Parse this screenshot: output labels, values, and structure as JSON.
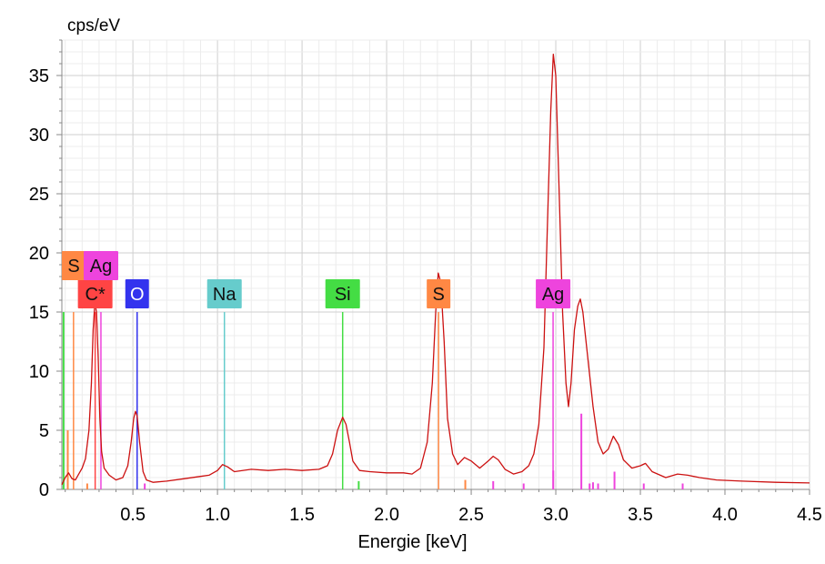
{
  "chart_data": {
    "type": "line",
    "ylabel": "cps/eV",
    "xlabel": "Energie [keV]",
    "xlim": [
      0.08,
      4.5
    ],
    "ylim": [
      0,
      38
    ],
    "x_ticks": [
      "0.5",
      "1.0",
      "1.5",
      "2.0",
      "2.5",
      "3.0",
      "3.5",
      "4.0",
      "4.5"
    ],
    "y_ticks": [
      "0",
      "5",
      "10",
      "15",
      "20",
      "25",
      "30",
      "35"
    ],
    "grid": true,
    "legend": "none",
    "colors": {
      "spectrum": "#cc1111"
    },
    "series": [
      {
        "values": [
          [
            0.08,
            0.4
          ],
          [
            0.1,
            1.0
          ],
          [
            0.12,
            1.4
          ],
          [
            0.14,
            0.9
          ],
          [
            0.16,
            0.8
          ],
          [
            0.18,
            1.3
          ],
          [
            0.2,
            1.8
          ],
          [
            0.22,
            2.6
          ],
          [
            0.24,
            5.0
          ],
          [
            0.255,
            9.0
          ],
          [
            0.265,
            13.5
          ],
          [
            0.275,
            15.8
          ],
          [
            0.285,
            15.0
          ],
          [
            0.295,
            11.0
          ],
          [
            0.305,
            6.0
          ],
          [
            0.315,
            3.2
          ],
          [
            0.33,
            1.8
          ],
          [
            0.36,
            1.2
          ],
          [
            0.4,
            0.8
          ],
          [
            0.44,
            1.0
          ],
          [
            0.47,
            2.0
          ],
          [
            0.49,
            4.0
          ],
          [
            0.505,
            6.0
          ],
          [
            0.515,
            6.6
          ],
          [
            0.525,
            6.2
          ],
          [
            0.54,
            4.0
          ],
          [
            0.56,
            1.5
          ],
          [
            0.58,
            0.8
          ],
          [
            0.62,
            0.6
          ],
          [
            0.7,
            0.7
          ],
          [
            0.8,
            0.9
          ],
          [
            0.9,
            1.1
          ],
          [
            0.95,
            1.2
          ],
          [
            1.0,
            1.6
          ],
          [
            1.03,
            2.1
          ],
          [
            1.06,
            1.9
          ],
          [
            1.1,
            1.5
          ],
          [
            1.2,
            1.7
          ],
          [
            1.3,
            1.6
          ],
          [
            1.4,
            1.7
          ],
          [
            1.5,
            1.6
          ],
          [
            1.6,
            1.7
          ],
          [
            1.65,
            2.0
          ],
          [
            1.68,
            3.0
          ],
          [
            1.71,
            5.0
          ],
          [
            1.74,
            6.1
          ],
          [
            1.76,
            5.5
          ],
          [
            1.78,
            4.0
          ],
          [
            1.8,
            2.4
          ],
          [
            1.84,
            1.6
          ],
          [
            1.9,
            1.5
          ],
          [
            2.0,
            1.4
          ],
          [
            2.1,
            1.4
          ],
          [
            2.15,
            1.3
          ],
          [
            2.2,
            1.8
          ],
          [
            2.24,
            4.0
          ],
          [
            2.27,
            9.0
          ],
          [
            2.29,
            15.0
          ],
          [
            2.305,
            18.3
          ],
          [
            2.32,
            17.5
          ],
          [
            2.34,
            12.5
          ],
          [
            2.36,
            6.0
          ],
          [
            2.39,
            3.0
          ],
          [
            2.42,
            2.1
          ],
          [
            2.46,
            2.7
          ],
          [
            2.5,
            2.4
          ],
          [
            2.55,
            1.8
          ],
          [
            2.6,
            2.4
          ],
          [
            2.63,
            2.8
          ],
          [
            2.66,
            2.5
          ],
          [
            2.7,
            1.7
          ],
          [
            2.75,
            1.3
          ],
          [
            2.8,
            1.5
          ],
          [
            2.84,
            2.0
          ],
          [
            2.87,
            3.0
          ],
          [
            2.9,
            5.5
          ],
          [
            2.93,
            12.0
          ],
          [
            2.95,
            22.0
          ],
          [
            2.97,
            32.0
          ],
          [
            2.985,
            36.8
          ],
          [
            3.0,
            35.0
          ],
          [
            3.02,
            25.0
          ],
          [
            3.04,
            15.0
          ],
          [
            3.06,
            9.0
          ],
          [
            3.075,
            7.0
          ],
          [
            3.09,
            9.0
          ],
          [
            3.11,
            13.5
          ],
          [
            3.13,
            15.5
          ],
          [
            3.145,
            16.1
          ],
          [
            3.16,
            15.0
          ],
          [
            3.19,
            11.0
          ],
          [
            3.22,
            7.0
          ],
          [
            3.25,
            4.0
          ],
          [
            3.28,
            3.0
          ],
          [
            3.31,
            3.4
          ],
          [
            3.34,
            4.5
          ],
          [
            3.37,
            3.8
          ],
          [
            3.4,
            2.5
          ],
          [
            3.45,
            1.8
          ],
          [
            3.5,
            2.0
          ],
          [
            3.53,
            2.2
          ],
          [
            3.57,
            1.5
          ],
          [
            3.65,
            1.0
          ],
          [
            3.72,
            1.3
          ],
          [
            3.78,
            1.2
          ],
          [
            3.85,
            1.0
          ],
          [
            3.95,
            0.8
          ],
          [
            4.1,
            0.7
          ],
          [
            4.3,
            0.6
          ],
          [
            4.5,
            0.55
          ]
        ]
      }
    ],
    "element_markers": [
      {
        "label": "C*",
        "energy": 0.277,
        "height": 15,
        "color": "#ff4444"
      },
      {
        "label": "O",
        "energy": 0.525,
        "height": 15,
        "color": "#3333ee"
      },
      {
        "label": "Na",
        "energy": 1.041,
        "height": 15,
        "color": "#66cccc"
      },
      {
        "label": "Si",
        "energy": 1.74,
        "height": 15,
        "color": "#44dd44"
      },
      {
        "label": "S",
        "energy": 2.307,
        "height": 15,
        "color": "#ff8844"
      },
      {
        "label": "Ag",
        "energy": 2.984,
        "height": 15,
        "color": "#ee44dd"
      },
      {
        "label": "S",
        "energy": 0.149,
        "height": 15,
        "color": "#ff8844"
      },
      {
        "label": "Ag",
        "energy": 0.311,
        "height": 15,
        "color": "#ee44dd"
      }
    ],
    "minor_lines": [
      {
        "energy": 0.09,
        "height": 15,
        "color": "#44dd44"
      },
      {
        "energy": 0.115,
        "height": 5,
        "color": "#ff8844"
      },
      {
        "energy": 0.23,
        "height": 0.5,
        "color": "#ff8844"
      },
      {
        "energy": 0.57,
        "height": 0.5,
        "color": "#ee44dd"
      },
      {
        "energy": 1.835,
        "height": 0.7,
        "color": "#44dd44"
      },
      {
        "energy": 2.465,
        "height": 0.8,
        "color": "#ff8844"
      },
      {
        "energy": 2.63,
        "height": 0.7,
        "color": "#ee44dd"
      },
      {
        "energy": 2.81,
        "height": 0.5,
        "color": "#ee44dd"
      },
      {
        "energy": 2.985,
        "height": 1.6,
        "color": "#ee44dd"
      },
      {
        "energy": 3.151,
        "height": 6.4,
        "color": "#ee44dd"
      },
      {
        "energy": 3.2,
        "height": 0.5,
        "color": "#ee44dd"
      },
      {
        "energy": 3.22,
        "height": 0.6,
        "color": "#ee44dd"
      },
      {
        "energy": 3.25,
        "height": 0.5,
        "color": "#ee44dd"
      },
      {
        "energy": 3.347,
        "height": 1.5,
        "color": "#ee44dd"
      },
      {
        "energy": 3.52,
        "height": 0.5,
        "color": "#ee44dd"
      },
      {
        "energy": 3.75,
        "height": 0.5,
        "color": "#ee44dd"
      }
    ]
  }
}
